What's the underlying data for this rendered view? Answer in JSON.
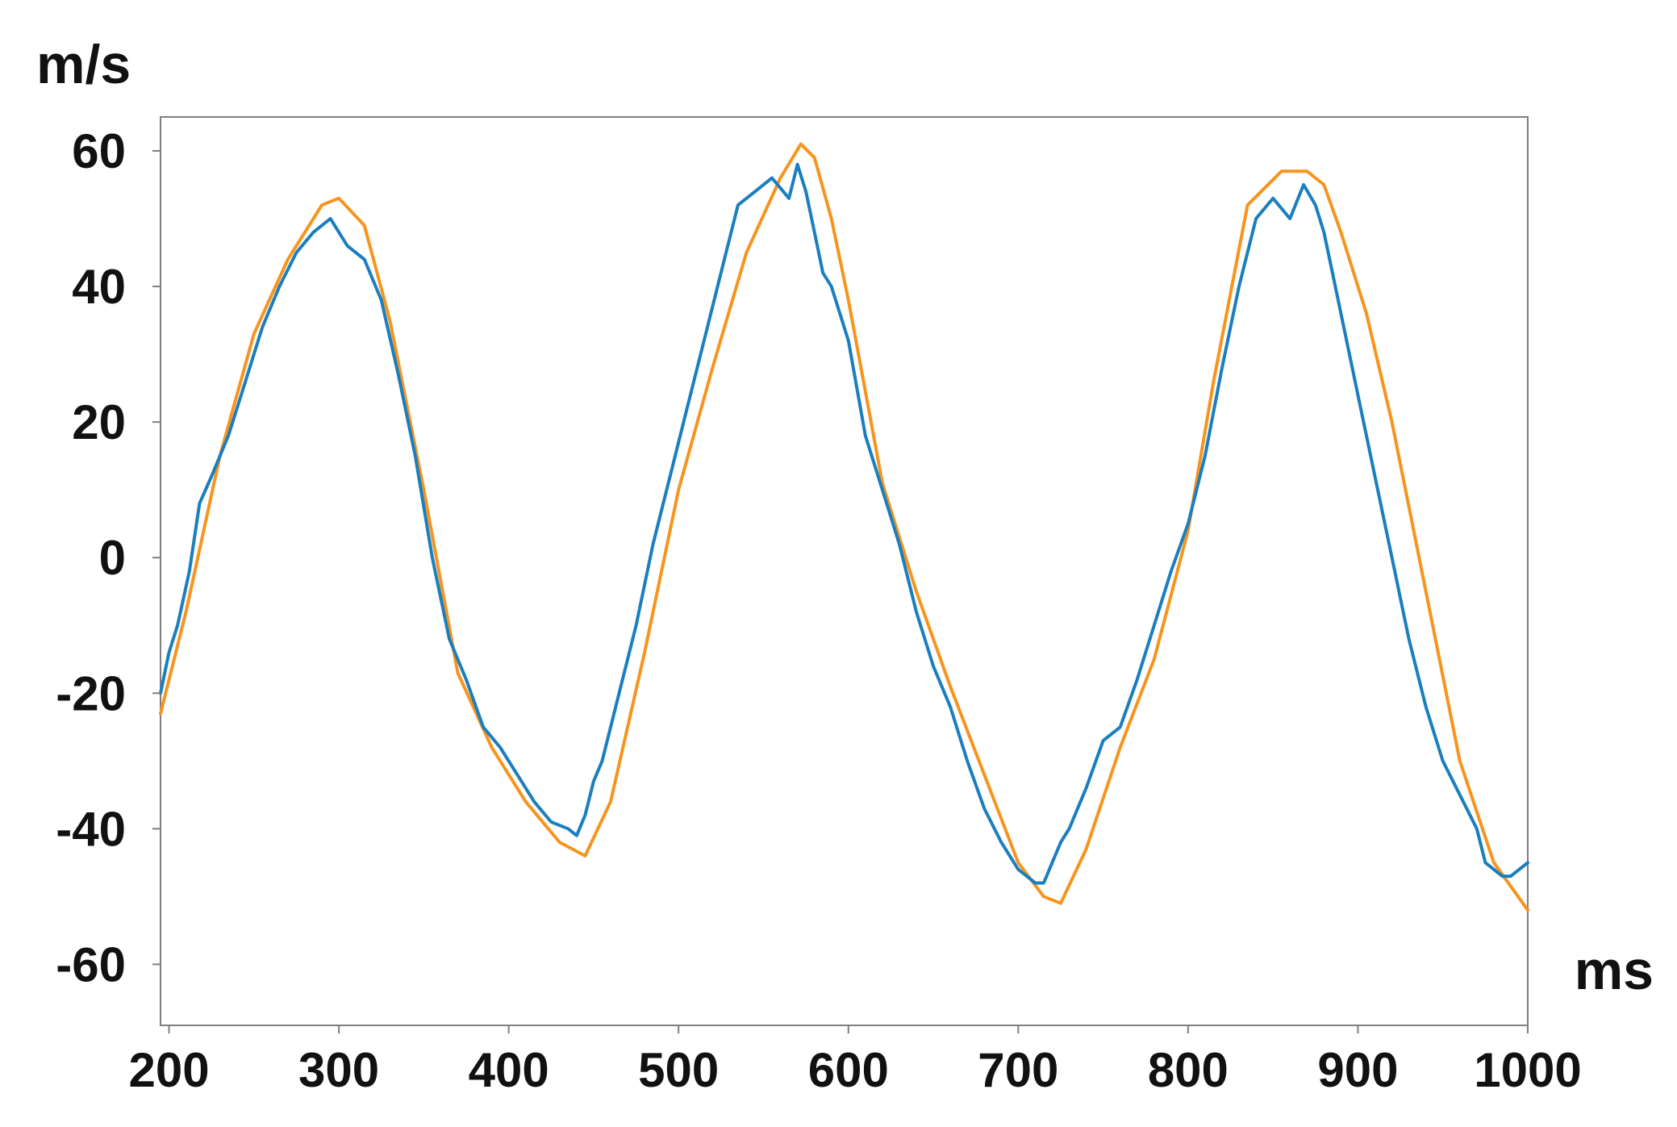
{
  "chart_data": {
    "type": "line",
    "title": "",
    "xlabel": "ms",
    "ylabel": "m/s",
    "xlim": [
      195,
      1000
    ],
    "ylim": [
      -69,
      65
    ],
    "x_ticks": [
      200,
      300,
      400,
      500,
      600,
      700,
      800,
      900,
      1000
    ],
    "x_tick_labels": [
      "200",
      "300",
      "400",
      "500",
      "600",
      "700",
      "800",
      "900",
      "1000"
    ],
    "y_ticks": [
      60,
      40,
      20,
      0,
      -20,
      -40,
      -60
    ],
    "y_tick_labels": [
      "60",
      "40",
      "20",
      "0",
      "-20",
      "-40",
      "-60"
    ],
    "grid": false,
    "legend": "none",
    "series": [
      {
        "color": "#f7941d",
        "x": [
          195,
          210,
          230,
          250,
          270,
          290,
          300,
          315,
          330,
          350,
          370,
          390,
          410,
          430,
          445,
          460,
          480,
          500,
          520,
          540,
          560,
          572,
          580,
          590,
          600,
          620,
          640,
          660,
          680,
          700,
          715,
          725,
          740,
          760,
          780,
          800,
          815,
          835,
          855,
          870,
          880,
          890,
          905,
          920,
          940,
          960,
          980,
          1000
        ],
        "y": [
          -23,
          -8,
          15,
          33,
          44,
          52,
          53,
          49,
          35,
          10,
          -17,
          -28,
          -36,
          -42,
          -44,
          -36,
          -14,
          10,
          28,
          45,
          56,
          61,
          59,
          50,
          38,
          11,
          -5,
          -19,
          -32,
          -45,
          -50,
          -51,
          -43,
          -28,
          -15,
          4,
          26,
          52,
          57,
          57,
          55,
          48,
          36,
          20,
          -5,
          -30,
          -45,
          -52
        ]
      },
      {
        "color": "#1a7ebf",
        "x": [
          195,
          200,
          205,
          212,
          218,
          225,
          235,
          245,
          255,
          265,
          275,
          285,
          295,
          305,
          315,
          325,
          335,
          345,
          355,
          365,
          375,
          385,
          395,
          405,
          415,
          425,
          435,
          440,
          445,
          450,
          455,
          465,
          475,
          485,
          495,
          505,
          515,
          525,
          535,
          545,
          555,
          565,
          570,
          575,
          580,
          585,
          590,
          600,
          610,
          620,
          630,
          640,
          650,
          660,
          670,
          680,
          690,
          700,
          710,
          715,
          720,
          725,
          730,
          740,
          750,
          760,
          770,
          780,
          790,
          800,
          810,
          820,
          830,
          840,
          850,
          860,
          868,
          875,
          880,
          885,
          890,
          900,
          910,
          920,
          930,
          940,
          950,
          960,
          970,
          975,
          980,
          985,
          990,
          1000
        ],
        "y": [
          -20,
          -14,
          -10,
          -2,
          8,
          12,
          18,
          26,
          34,
          40,
          45,
          48,
          50,
          46,
          44,
          38,
          27,
          15,
          0,
          -12,
          -18,
          -25,
          -28,
          -32,
          -36,
          -39,
          -40,
          -41,
          -38,
          -33,
          -30,
          -20,
          -10,
          2,
          12,
          22,
          32,
          42,
          52,
          54,
          56,
          53,
          58,
          54,
          48,
          42,
          40,
          32,
          18,
          10,
          2,
          -8,
          -16,
          -22,
          -30,
          -37,
          -42,
          -46,
          -48,
          -48,
          -45,
          -42,
          -40,
          -34,
          -27,
          -25,
          -18,
          -10,
          -2,
          5,
          15,
          28,
          40,
          50,
          53,
          50,
          55,
          52,
          48,
          42,
          36,
          24,
          12,
          0,
          -12,
          -22,
          -30,
          -35,
          -40,
          -45,
          -46,
          -47,
          -47,
          -45
        ]
      }
    ]
  }
}
